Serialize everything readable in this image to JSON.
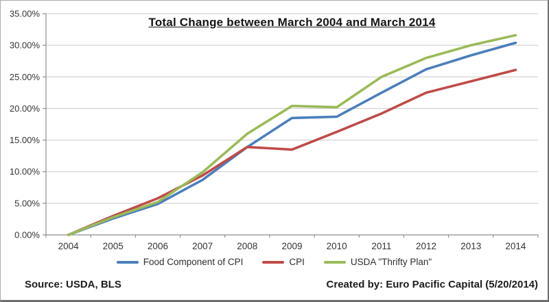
{
  "chart_data": {
    "type": "line",
    "title": "Total Change between March 2004 and March 2014",
    "x": [
      "2004",
      "2005",
      "2006",
      "2007",
      "2008",
      "2009",
      "2010",
      "2011",
      "2012",
      "2013",
      "2014"
    ],
    "series": [
      {
        "name": "Food Component of CPI",
        "color": "#4A7EBB",
        "values": [
          0.0,
          2.6,
          4.9,
          8.7,
          13.9,
          18.5,
          18.7,
          22.5,
          26.2,
          28.4,
          30.4
        ]
      },
      {
        "name": "CPI",
        "color": "#BE4B48",
        "values": [
          0.0,
          3.0,
          5.8,
          9.4,
          13.9,
          13.5,
          16.3,
          19.2,
          22.5,
          24.3,
          26.1
        ]
      },
      {
        "name": "USDA \"Thrifty Plan\"",
        "color": "#9ABA58",
        "values": [
          0.0,
          2.8,
          5.2,
          9.9,
          16.0,
          20.4,
          20.2,
          25.0,
          28.0,
          30.0,
          31.6
        ]
      }
    ],
    "ylim": [
      0,
      35
    ],
    "ytick_step": 5,
    "ytick_labels": [
      "0.00%",
      "5.00%",
      "10.00%",
      "15.00%",
      "20.00%",
      "25.00%",
      "30.00%",
      "35.00%"
    ],
    "grid": true,
    "legend_position": "bottom",
    "colors": {
      "gridline": "#c9c9c9",
      "axis": "#8e8e8e",
      "tick_text": "#333333"
    }
  },
  "footer": {
    "source": "Source: USDA, BLS",
    "created_by": "Created by: Euro Pacific Capital (5/20/2014)"
  }
}
